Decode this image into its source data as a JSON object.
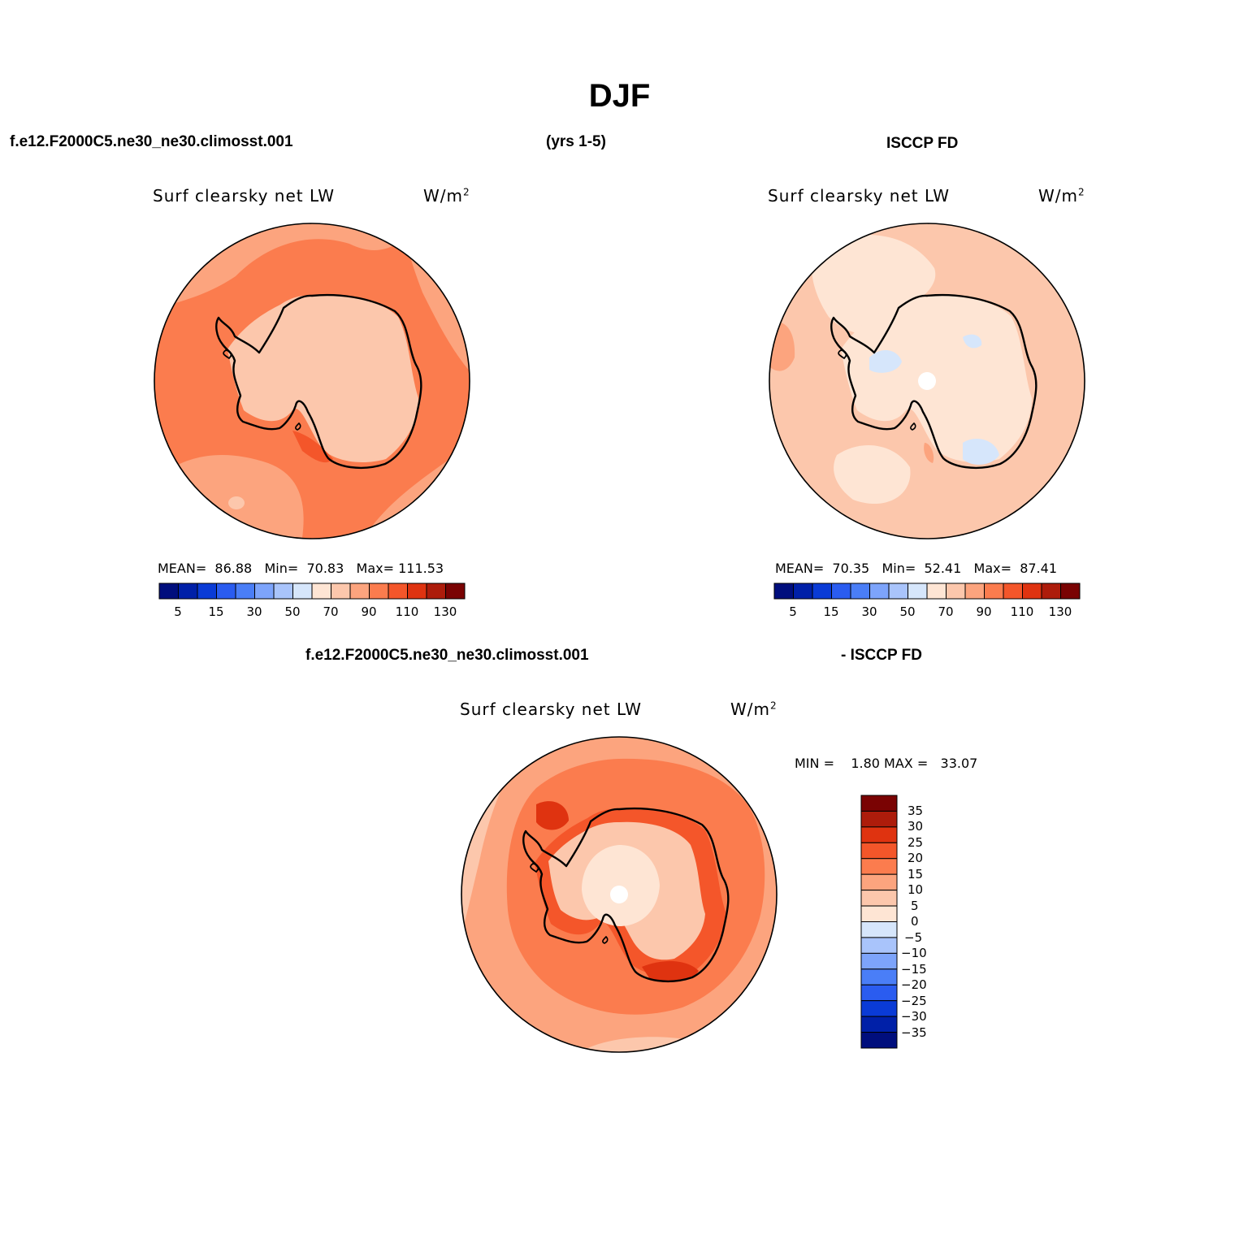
{
  "title": "DJF",
  "header": {
    "case_name": "f.e12.F2000C5.ne30_ne30.climosst.001",
    "years": "(yrs 1-5)",
    "obs_name": "ISCCP FD"
  },
  "panels": [
    {
      "id": "model",
      "variable": "Surf clearsky net LW",
      "units_base": "W/m",
      "units_exp": "2",
      "stats": {
        "mean_label": "MEAN=",
        "mean": "86.88",
        "min_label": "Min=",
        "min": "70.83",
        "max_label": "Max=",
        "max": "111.53"
      },
      "colorbar_ticks": [
        "5",
        "15",
        "30",
        "50",
        "70",
        "90",
        "110",
        "130"
      ]
    },
    {
      "id": "obs",
      "variable": "Surf clearsky net LW",
      "units_base": "W/m",
      "units_exp": "2",
      "stats": {
        "mean_label": "MEAN=",
        "mean": "70.35",
        "min_label": "Min=",
        "min": "52.41",
        "max_label": "Max=",
        "max": "87.41"
      },
      "colorbar_ticks": [
        "5",
        "15",
        "30",
        "50",
        "70",
        "90",
        "110",
        "130"
      ]
    }
  ],
  "difference": {
    "title_left": "f.e12.F2000C5.ne30_ne30.climosst.001",
    "title_right": "- ISCCP FD",
    "variable": "Surf clearsky net LW",
    "units_base": "W/m",
    "units_exp": "2",
    "min_label": "MIN =",
    "min": "1.80",
    "max_label": "MAX =",
    "max": "33.07",
    "colorbar_ticks": [
      "35",
      "30",
      "25",
      "20",
      "15",
      "10",
      "5",
      "0",
      "−5",
      "−10",
      "−15",
      "−20",
      "−25",
      "−30",
      "−35"
    ]
  },
  "palette_horizontal": [
    "#000e7d",
    "#0020a8",
    "#0a3bd6",
    "#2a5cf0",
    "#4a7ef7",
    "#7da4fb",
    "#a9c4fb",
    "#d6e6fb",
    "#fee5d4",
    "#fcc7ac",
    "#fca47e",
    "#fb7c4e",
    "#f4562a",
    "#df3310",
    "#ad1c0b",
    "#7a0303"
  ],
  "palette_vertical": [
    "#7a0303",
    "#ad1c0b",
    "#df3310",
    "#f4562a",
    "#fb7c4e",
    "#fca47e",
    "#fcc7ac",
    "#fee5d4",
    "#d6e6fb",
    "#a9c4fb",
    "#7da4fb",
    "#4a7ef7",
    "#2a5cf0",
    "#0a3bd6",
    "#0020a8",
    "#000e7d"
  ]
}
